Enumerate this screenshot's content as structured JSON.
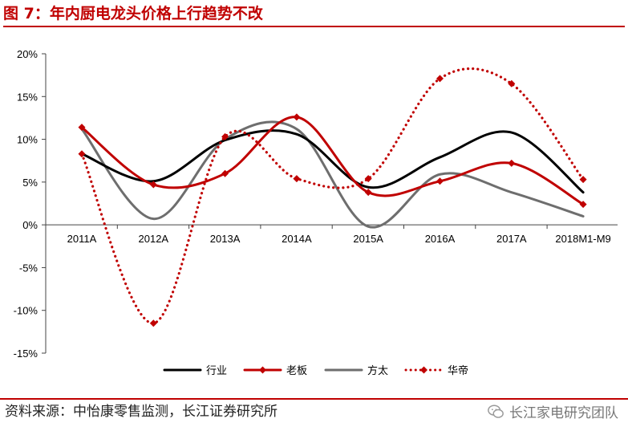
{
  "figure": {
    "title": "图 7：年内厨电龙头价格上行趋势不改",
    "source": "资料来源：中怡康零售监测，长江证券研究所",
    "watermark": "长江家电研究团队"
  },
  "chart_data": {
    "type": "line",
    "title": "",
    "xlabel": "",
    "ylabel": "",
    "categories": [
      "2011A",
      "2012A",
      "2013A",
      "2014A",
      "2015A",
      "2016A",
      "2017A",
      "2018M1-M9"
    ],
    "ylim": [
      -0.15,
      0.2
    ],
    "yticks": [
      0.2,
      0.15,
      0.1,
      0.05,
      0.0,
      -0.05,
      -0.1,
      -0.15
    ],
    "ytick_labels": [
      "20%",
      "15%",
      "10%",
      "5%",
      "0%",
      "-5%",
      "-10%",
      "-15%"
    ],
    "grid": false,
    "legend_position": "bottom",
    "series": [
      {
        "name": "行业",
        "values": [
          0.083,
          0.051,
          0.099,
          0.106,
          0.044,
          0.079,
          0.108,
          0.038
        ],
        "color": "#000000",
        "style": "solid",
        "marker": "none"
      },
      {
        "name": "老板",
        "values": [
          0.114,
          0.047,
          0.06,
          0.126,
          0.038,
          0.051,
          0.072,
          0.024
        ],
        "color": "#c00000",
        "style": "solid",
        "marker": "diamond"
      },
      {
        "name": "方太",
        "values": [
          0.112,
          0.007,
          0.1,
          0.112,
          -0.002,
          0.059,
          0.038,
          0.01
        ],
        "color": "#6e6e6e",
        "style": "solid",
        "marker": "none"
      },
      {
        "name": "华帝",
        "values": [
          0.083,
          -0.115,
          0.103,
          0.054,
          0.054,
          0.171,
          0.165,
          0.053
        ],
        "color": "#c00000",
        "style": "dotted",
        "marker": "diamond"
      }
    ]
  }
}
